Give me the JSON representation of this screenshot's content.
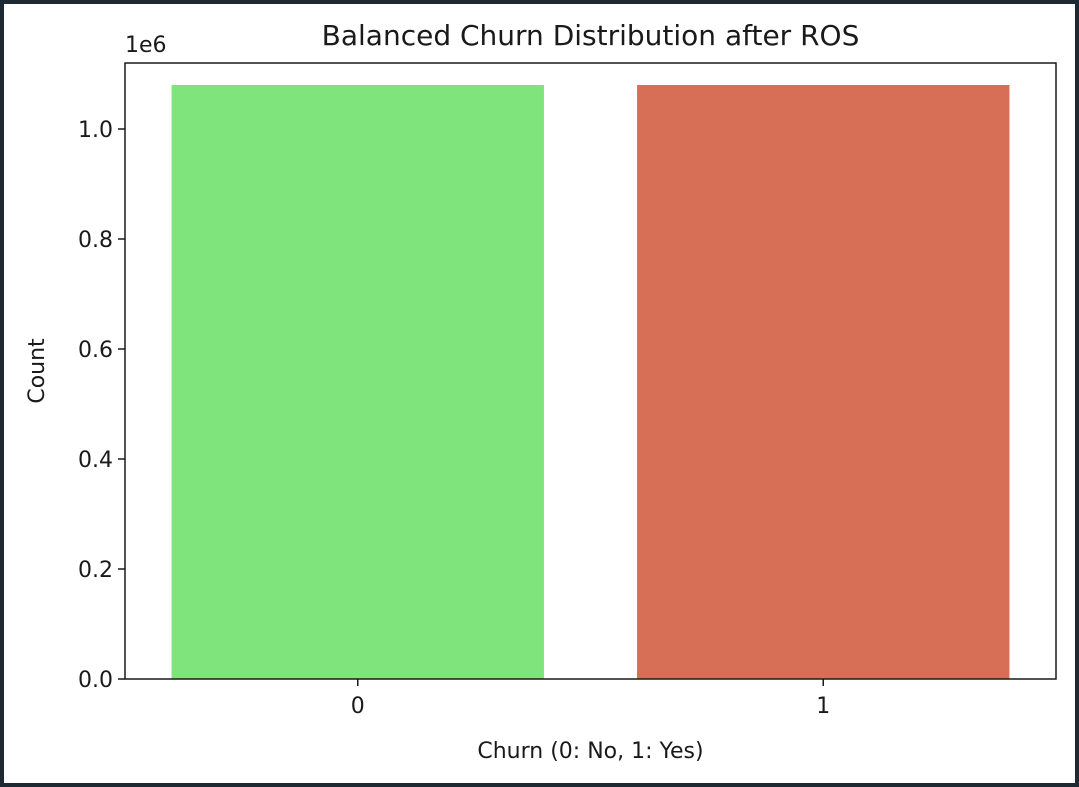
{
  "chart_data": {
    "type": "bar",
    "title": "Balanced Churn Distribution after ROS",
    "xlabel": "Churn (0: No, 1: Yes)",
    "ylabel": "Count",
    "offset_label": "1e6",
    "categories": [
      "0",
      "1"
    ],
    "values": [
      1080000,
      1080000
    ],
    "colors": [
      "#7ee47b",
      "#d66f55"
    ],
    "ylim": [
      0,
      1120000
    ],
    "yticks": [
      0,
      200000,
      400000,
      600000,
      800000,
      1000000
    ],
    "ytick_labels": [
      "0.0",
      "0.2",
      "0.4",
      "0.6",
      "0.8",
      "1.0"
    ],
    "grid": false,
    "legend": "none"
  }
}
